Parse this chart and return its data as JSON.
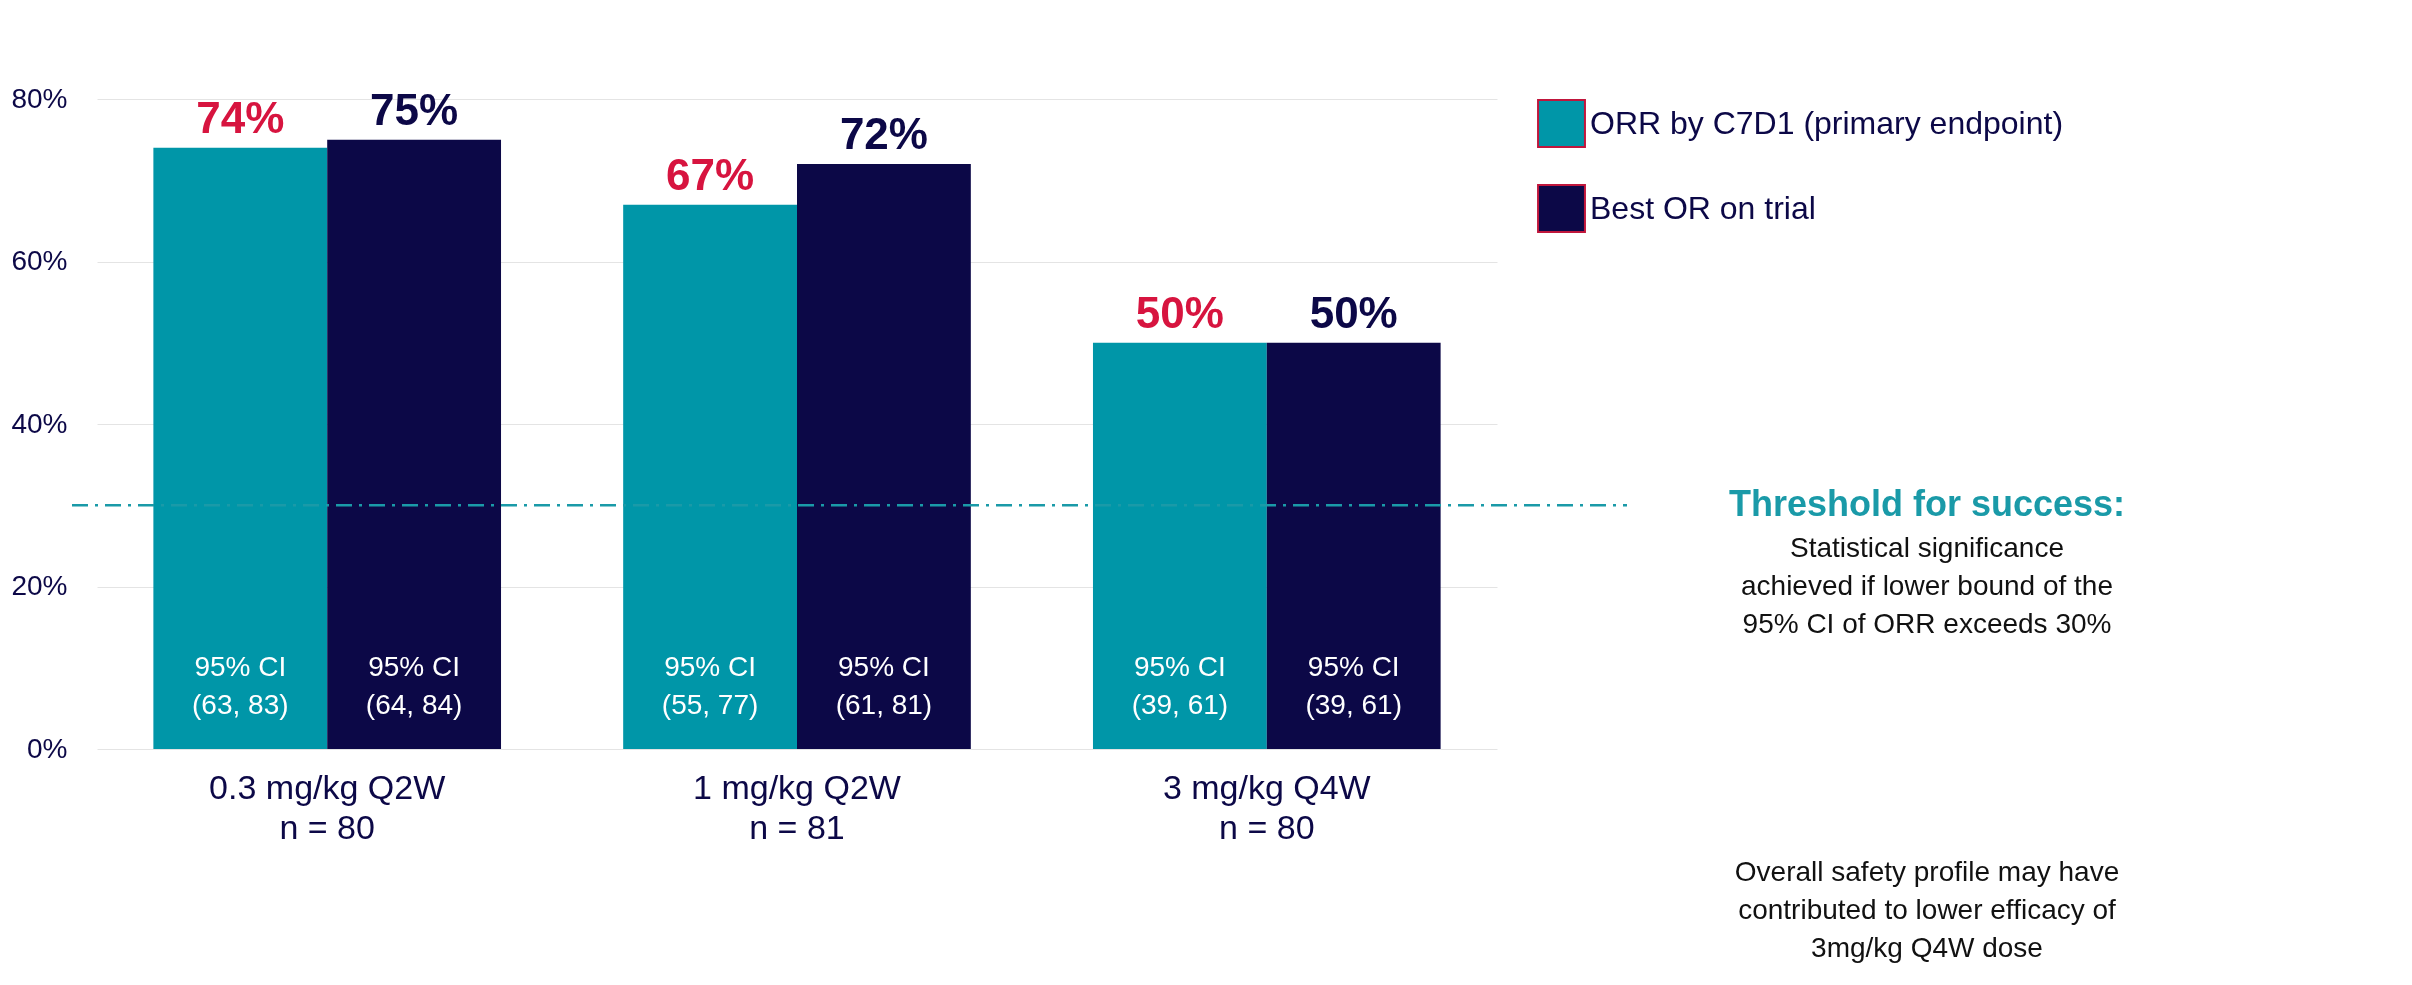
{
  "chart_data": {
    "type": "bar",
    "categories": [
      "0.3 mg/kg Q2W\nn = 80",
      "1 mg/kg Q2W\nn = 81",
      "3 mg/kg Q4W\nn = 80"
    ],
    "series": [
      {
        "name": "ORR by C7D1 (primary endpoint)",
        "color": "#0096a8",
        "values": [
          74,
          67,
          50
        ],
        "value_labels": [
          "74%",
          "67%",
          "50%"
        ]
      },
      {
        "name": "Best OR on trial",
        "color": "#0c0847",
        "values": [
          75,
          72,
          50
        ],
        "value_labels": [
          "75%",
          "72%",
          "50%"
        ]
      }
    ],
    "ylim": [
      0,
      80
    ],
    "yticks": [
      {
        "value": 0,
        "label": "0%"
      },
      {
        "value": 20,
        "label": "20%"
      },
      {
        "value": 40,
        "label": "40%"
      },
      {
        "value": 60,
        "label": "60%"
      },
      {
        "value": 80,
        "label": "80%"
      }
    ],
    "grid": "y",
    "legend": "top right",
    "ref_lines": [
      {
        "axis": "y",
        "value": 30,
        "label": "Threshold for success:",
        "color": "#1a9aa8",
        "line_style": "dashed"
      }
    ],
    "annotations": [
      "95% CI\n(63, 83)",
      "95% CI\n(64, 84)",
      "95% CI\n(55, 77)",
      "95% CI\n(61, 81)",
      "95% CI\n(39, 61)",
      "95% CI\n(39, 61)",
      "Statistical significance\nachieved if lower bound of the\n95% CI of ORR exceeds 30%",
      "Overall safety profile may have\ncontributed to lower efficacy of\n3mg/kg Q4W dose"
    ]
  }
}
